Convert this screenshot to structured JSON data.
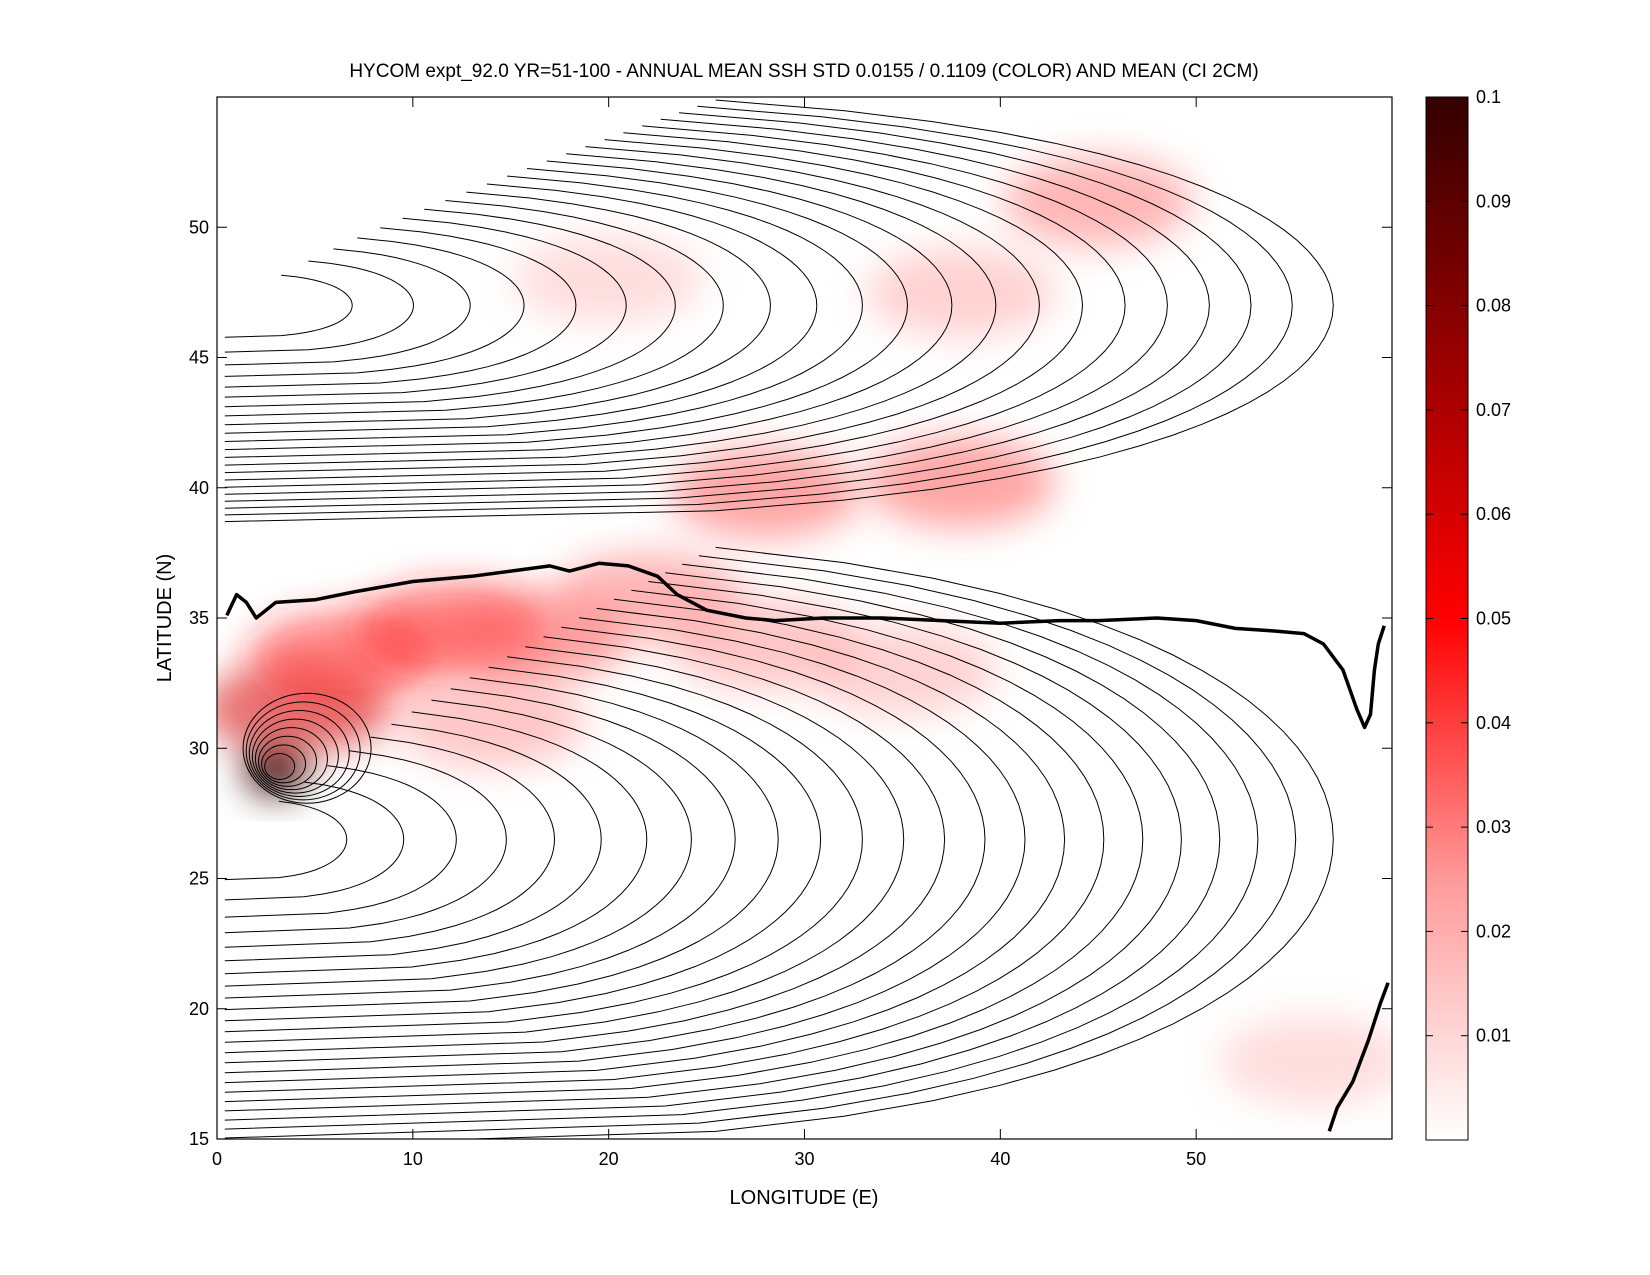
{
  "chart_data": {
    "type": "heatmap",
    "title": "HYCOM expt_92.0 YR=51-100 - ANNUAL MEAN SSH STD 0.0155 / 0.1109 (COLOR) AND MEAN (CI 2CM)",
    "xlabel": "LONGITUDE (E)",
    "ylabel": "LATITUDE (N)",
    "xlim": [
      0,
      60
    ],
    "ylim": [
      15,
      55
    ],
    "xticks": [
      0,
      10,
      20,
      30,
      40,
      50
    ],
    "yticks": [
      15,
      20,
      25,
      30,
      35,
      40,
      45,
      50
    ],
    "std_mean": 0.0155,
    "std_max": 0.1109,
    "contour_interval_cm": 2,
    "colorbar": {
      "range": [
        0,
        0.1
      ],
      "ticks": [
        0.01,
        0.02,
        0.03,
        0.04,
        0.05,
        0.06,
        0.07,
        0.08,
        0.09,
        0.1
      ],
      "colormap": [
        "#ffffff",
        "#ff9999",
        "#ff0000",
        "#990000",
        "#330000"
      ]
    },
    "std_features": [
      {
        "lon": 3.0,
        "lat": 29.2,
        "std": 0.1
      },
      {
        "lon": 4.0,
        "lat": 31.5,
        "std": 0.06
      },
      {
        "lon": 6.5,
        "lat": 33.5,
        "std": 0.045
      },
      {
        "lon": 12.0,
        "lat": 34.6,
        "std": 0.045
      },
      {
        "lon": 16.0,
        "lat": 34.2,
        "std": 0.035
      },
      {
        "lon": 22.0,
        "lat": 35.8,
        "std": 0.03
      },
      {
        "lon": 28.0,
        "lat": 34.0,
        "std": 0.025
      },
      {
        "lon": 28.0,
        "lat": 39.8,
        "std": 0.035
      },
      {
        "lon": 38.0,
        "lat": 40.2,
        "std": 0.035
      },
      {
        "lon": 45.0,
        "lat": 51.0,
        "std": 0.03
      },
      {
        "lon": 38.0,
        "lat": 47.5,
        "std": 0.02
      },
      {
        "lon": 20.0,
        "lat": 48.0,
        "std": 0.015
      },
      {
        "lon": 14.0,
        "lat": 31.0,
        "std": 0.025
      },
      {
        "lon": 35.0,
        "lat": 33.0,
        "std": 0.02
      },
      {
        "lon": 56.0,
        "lat": 18.0,
        "std": 0.015
      }
    ],
    "zero_contour": {
      "lon": [
        0.5,
        1.0,
        1.5,
        2.0,
        3.0,
        5.0,
        7.0,
        10.0,
        13.0,
        15.0,
        17.0,
        18.0,
        19.5,
        21.0,
        22.5,
        23.5,
        25.0,
        27.0,
        28.5,
        31.0,
        34.0,
        37.0,
        40.0,
        43.0,
        45.0,
        48.0,
        50.0,
        52.0,
        54.0,
        55.5,
        56.5,
        57.5,
        58.2,
        58.6,
        58.9,
        59.1,
        59.3,
        59.6
      ],
      "lat": [
        35.1,
        35.9,
        35.6,
        35.0,
        35.6,
        35.7,
        36.0,
        36.4,
        36.6,
        36.8,
        37.0,
        36.8,
        37.1,
        37.0,
        36.6,
        35.9,
        35.3,
        35.0,
        34.9,
        35.0,
        35.0,
        34.9,
        34.8,
        34.9,
        34.9,
        35.0,
        34.9,
        34.6,
        34.5,
        34.4,
        34.0,
        33.0,
        31.5,
        30.8,
        31.3,
        33.0,
        34.0,
        34.7
      ]
    },
    "zero_contour_sw": {
      "lon": [
        56.8,
        57.2,
        58.0,
        58.8,
        59.4,
        59.8
      ],
      "lat": [
        15.3,
        16.2,
        17.2,
        18.8,
        20.2,
        21.0
      ]
    }
  }
}
